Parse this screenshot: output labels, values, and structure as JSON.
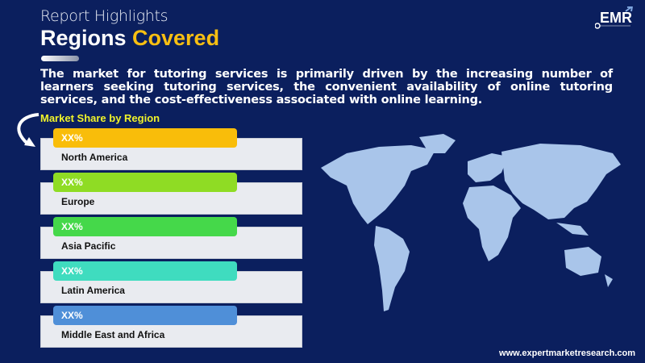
{
  "header": {
    "subtitle": "Report Highlights",
    "title_white": "Regions",
    "title_highlight": "Covered"
  },
  "description": "The market for tutoring services is primarily driven by the increasing number of learners seeking tutoring services, the convenient availability of online tutoring services, and the cost-effectiveness associated with online learning.",
  "section_label": "Market Share by Region",
  "regions": [
    {
      "value": "XX%",
      "name": "North America",
      "color": "#f9bd0a"
    },
    {
      "value": "XX%",
      "name": "Europe",
      "color": "#8fdc24"
    },
    {
      "value": "XX%",
      "name": "Asia Pacific",
      "color": "#45d84a"
    },
    {
      "value": "XX%",
      "name": "Latin America",
      "color": "#3fdcbf"
    },
    {
      "value": "XX%",
      "name": "Middle East and Africa",
      "color": "#4f8fd8"
    }
  ],
  "logo": {
    "text": "EMR"
  },
  "footer_url": "www.expertmarketresearch.com",
  "colors": {
    "background": "#0b1f5e",
    "accent": "#f8bf12",
    "map": "#a9c5ea"
  }
}
